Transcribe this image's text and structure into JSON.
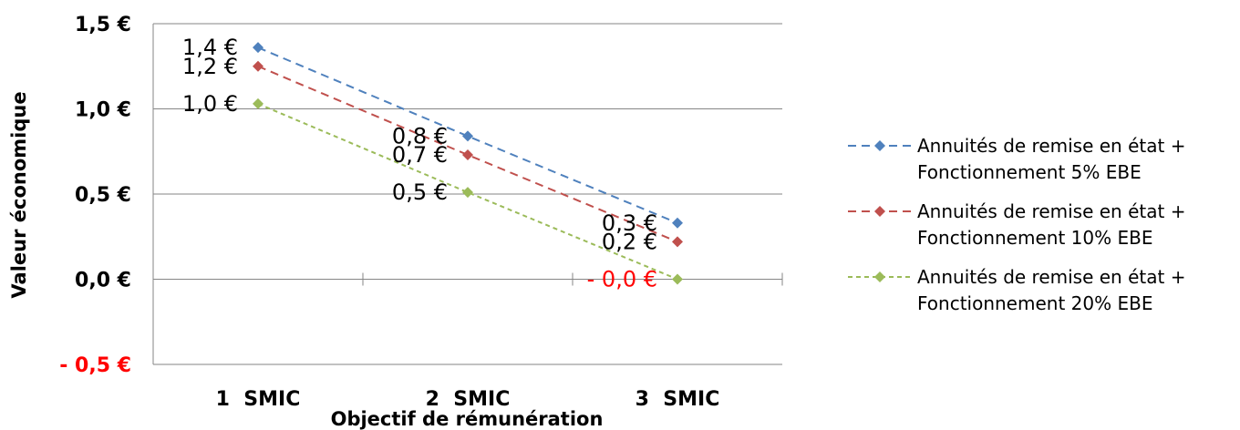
{
  "chart_data": {
    "type": "line",
    "categories": [
      "1  SMIC",
      "2  SMIC",
      "3  SMIC"
    ],
    "xlabel": "Objectif de rémunération",
    "ylabel": "Valeur économique",
    "ylim": [
      -0.5,
      1.5
    ],
    "yticks": [
      {
        "value": 1.5,
        "label": "1,5 €",
        "color": "#000000"
      },
      {
        "value": 1.0,
        "label": "1,0 €",
        "color": "#000000"
      },
      {
        "value": 0.5,
        "label": "0,5 €",
        "color": "#000000"
      },
      {
        "value": 0.0,
        "label": "0,0 €",
        "color": "#000000"
      },
      {
        "value": -0.5,
        "label": "- 0,5 €",
        "color": "#ff0000"
      }
    ],
    "grid": true,
    "legend": "right",
    "series": [
      {
        "name": [
          "Annuités de remise en état +",
          "Fonctionnement 5% EBE"
        ],
        "color": "#4f81bd",
        "dash": "9,6",
        "values": [
          1.36,
          0.84,
          0.33
        ],
        "labels": [
          "1,4 €",
          "0,8 €",
          "0,3 €"
        ],
        "label_colors": [
          "#000000",
          "#000000",
          "#000000"
        ]
      },
      {
        "name": [
          "Annuités de remise en état +",
          "Fonctionnement 10% EBE"
        ],
        "color": "#c0504d",
        "dash": "9,6",
        "values": [
          1.25,
          0.73,
          0.22
        ],
        "labels": [
          "1,2 €",
          "0,7 €",
          "0,2 €"
        ],
        "label_colors": [
          "#000000",
          "#000000",
          "#000000"
        ]
      },
      {
        "name": [
          "Annuités de remise en état +",
          "Fonctionnement 20% EBE"
        ],
        "color": "#9bbb59",
        "dash": "5,4",
        "values": [
          1.03,
          0.51,
          0.0
        ],
        "labels": [
          "1,0 €",
          "0,5 €",
          "- 0,0 €"
        ],
        "label_colors": [
          "#000000",
          "#000000",
          "#ff0000"
        ]
      }
    ]
  }
}
